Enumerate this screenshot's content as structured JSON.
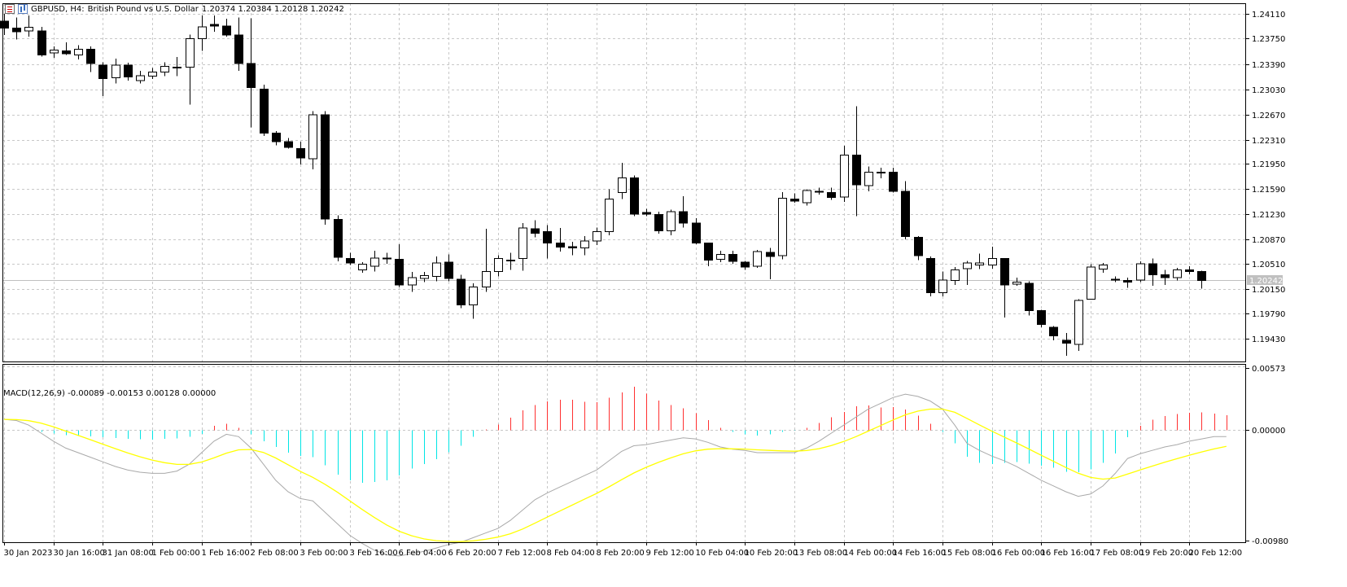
{
  "header": {
    "symbol": "GBPUSD, H4:",
    "description": "British Pound vs U.S. Dollar",
    "ohlc": "1.20374 1.20384 1.20128 1.20242",
    "icons": [
      "list-icon",
      "bar-chart-icon"
    ]
  },
  "macd": {
    "title": "MACD(12,26,9) -0.00089 -0.00153 0.00128 0.00000"
  },
  "price_tag": "1.20242",
  "colors": {
    "background": "#ffffff",
    "grid": "#c8c8c8",
    "candle": "#000000",
    "histogram_positive": "#ff3030",
    "histogram_negative": "#00e5e5",
    "macd_line": "#a9a9a9",
    "signal_line": "#ffff00",
    "price_line": "#c0c0c0"
  },
  "chart_data": [
    {
      "type": "candlestick",
      "symbol": "GBPUSD",
      "timeframe": "H4",
      "ylim": [
        1.191,
        1.2415
      ],
      "y_ticks": [
        "1.24110",
        "1.23750",
        "1.23390",
        "1.23030",
        "1.22670",
        "1.22310",
        "1.21950",
        "1.21590",
        "1.21230",
        "1.20870",
        "1.20510",
        "1.20150",
        "1.19790",
        "1.19430"
      ],
      "x_ticks": [
        "30 Jan 2023",
        "30 Jan 16:00",
        "31 Jan 08:00",
        "1 Feb 00:00",
        "1 Feb 16:00",
        "2 Feb 08:00",
        "3 Feb 00:00",
        "3 Feb 16:00",
        "6 Feb 04:00",
        "6 Feb 20:00",
        "7 Feb 12:00",
        "8 Feb 04:00",
        "8 Feb 20:00",
        "9 Feb 12:00",
        "10 Feb 04:00",
        "10 Feb 20:00",
        "13 Feb 08:00",
        "14 Feb 00:00",
        "14 Feb 16:00",
        "15 Feb 08:00",
        "16 Feb 00:00",
        "16 Feb 16:00",
        "17 Feb 08:00",
        "19 Feb 20:00",
        "20 Feb 12:00"
      ],
      "last_price": 1.20242,
      "candles": [
        {
          "o": 1.239,
          "h": 1.24,
          "l": 1.237,
          "c": 1.238
        },
        {
          "o": 1.238,
          "h": 1.2395,
          "l": 1.2364,
          "c": 1.2375
        },
        {
          "o": 1.2376,
          "h": 1.2398,
          "l": 1.2368,
          "c": 1.2381
        },
        {
          "o": 1.2376,
          "h": 1.2382,
          "l": 1.234,
          "c": 1.2342
        },
        {
          "o": 1.2345,
          "h": 1.2354,
          "l": 1.2338,
          "c": 1.2349
        },
        {
          "o": 1.2348,
          "h": 1.236,
          "l": 1.2342,
          "c": 1.2344
        },
        {
          "o": 1.2342,
          "h": 1.2356,
          "l": 1.2336,
          "c": 1.235
        },
        {
          "o": 1.235,
          "h": 1.2354,
          "l": 1.2318,
          "c": 1.233
        },
        {
          "o": 1.2328,
          "h": 1.2332,
          "l": 1.2284,
          "c": 1.2309
        },
        {
          "o": 1.231,
          "h": 1.2337,
          "l": 1.2302,
          "c": 1.2328
        },
        {
          "o": 1.2328,
          "h": 1.2331,
          "l": 1.2306,
          "c": 1.2311
        },
        {
          "o": 1.2306,
          "h": 1.232,
          "l": 1.2302,
          "c": 1.2313
        },
        {
          "o": 1.2312,
          "h": 1.2324,
          "l": 1.2308,
          "c": 1.2318
        },
        {
          "o": 1.2318,
          "h": 1.2332,
          "l": 1.2312,
          "c": 1.2326
        },
        {
          "o": 1.2324,
          "h": 1.2339,
          "l": 1.2312,
          "c": 1.2325
        },
        {
          "o": 1.2325,
          "h": 1.2371,
          "l": 1.2272,
          "c": 1.2365
        },
        {
          "o": 1.2365,
          "h": 1.2398,
          "l": 1.2348,
          "c": 1.2382
        },
        {
          "o": 1.2385,
          "h": 1.2398,
          "l": 1.2375,
          "c": 1.2383
        },
        {
          "o": 1.2383,
          "h": 1.2393,
          "l": 1.2368,
          "c": 1.237
        },
        {
          "o": 1.237,
          "h": 1.2395,
          "l": 1.232,
          "c": 1.233
        },
        {
          "o": 1.233,
          "h": 1.2394,
          "l": 1.224,
          "c": 1.2296
        },
        {
          "o": 1.2294,
          "h": 1.23,
          "l": 1.2228,
          "c": 1.2232
        },
        {
          "o": 1.2232,
          "h": 1.2235,
          "l": 1.2215,
          "c": 1.222
        },
        {
          "o": 1.222,
          "h": 1.2225,
          "l": 1.221,
          "c": 1.2212
        },
        {
          "o": 1.221,
          "h": 1.222,
          "l": 1.2188,
          "c": 1.2197
        },
        {
          "o": 1.2196,
          "h": 1.2263,
          "l": 1.2181,
          "c": 1.2258
        },
        {
          "o": 1.2258,
          "h": 1.2263,
          "l": 1.2103,
          "c": 1.2111
        },
        {
          "o": 1.211,
          "h": 1.2116,
          "l": 1.2051,
          "c": 1.2057
        },
        {
          "o": 1.2055,
          "h": 1.2063,
          "l": 1.2046,
          "c": 1.2049
        },
        {
          "o": 1.2039,
          "h": 1.205,
          "l": 1.2035,
          "c": 1.2047
        },
        {
          "o": 1.2044,
          "h": 1.2066,
          "l": 1.2037,
          "c": 1.2056
        },
        {
          "o": 1.2055,
          "h": 1.2063,
          "l": 1.2048,
          "c": 1.2056
        },
        {
          "o": 1.2054,
          "h": 1.2075,
          "l": 1.2015,
          "c": 1.2018
        },
        {
          "o": 1.2018,
          "h": 1.2036,
          "l": 1.2008,
          "c": 1.2028
        },
        {
          "o": 1.2027,
          "h": 1.2036,
          "l": 1.2022,
          "c": 1.2031
        },
        {
          "o": 1.203,
          "h": 1.2058,
          "l": 1.2023,
          "c": 1.2049
        },
        {
          "o": 1.205,
          "h": 1.2061,
          "l": 1.2023,
          "c": 1.2027
        },
        {
          "o": 1.2026,
          "h": 1.2032,
          "l": 1.1985,
          "c": 1.199
        },
        {
          "o": 1.199,
          "h": 1.202,
          "l": 1.197,
          "c": 1.2015
        },
        {
          "o": 1.2015,
          "h": 1.2097,
          "l": 1.2008,
          "c": 1.2037
        },
        {
          "o": 1.2037,
          "h": 1.206,
          "l": 1.203,
          "c": 1.2055
        },
        {
          "o": 1.2053,
          "h": 1.2063,
          "l": 1.2039,
          "c": 1.2053
        },
        {
          "o": 1.2055,
          "h": 1.2105,
          "l": 1.2038,
          "c": 1.2098
        },
        {
          "o": 1.2097,
          "h": 1.2109,
          "l": 1.2085,
          "c": 1.2091
        },
        {
          "o": 1.2093,
          "h": 1.2102,
          "l": 1.2055,
          "c": 1.2077
        },
        {
          "o": 1.2077,
          "h": 1.2098,
          "l": 1.2065,
          "c": 1.2071
        },
        {
          "o": 1.2072,
          "h": 1.2079,
          "l": 1.206,
          "c": 1.207
        },
        {
          "o": 1.207,
          "h": 1.2087,
          "l": 1.206,
          "c": 1.208
        },
        {
          "o": 1.208,
          "h": 1.2099,
          "l": 1.2074,
          "c": 1.2093
        },
        {
          "o": 1.2093,
          "h": 1.2153,
          "l": 1.2088,
          "c": 1.2139
        },
        {
          "o": 1.2148,
          "h": 1.219,
          "l": 1.2139,
          "c": 1.2169
        },
        {
          "o": 1.2169,
          "h": 1.2172,
          "l": 1.2115,
          "c": 1.2118
        },
        {
          "o": 1.212,
          "h": 1.2125,
          "l": 1.2115,
          "c": 1.2118
        },
        {
          "o": 1.2117,
          "h": 1.2121,
          "l": 1.209,
          "c": 1.2094
        },
        {
          "o": 1.2094,
          "h": 1.2124,
          "l": 1.2088,
          "c": 1.2121
        },
        {
          "o": 1.2121,
          "h": 1.2143,
          "l": 1.2099,
          "c": 1.2105
        },
        {
          "o": 1.2105,
          "h": 1.2112,
          "l": 1.2075,
          "c": 1.2077
        },
        {
          "o": 1.2077,
          "h": 1.2077,
          "l": 1.2044,
          "c": 1.2053
        },
        {
          "o": 1.2054,
          "h": 1.2066,
          "l": 1.205,
          "c": 1.2061
        },
        {
          "o": 1.2061,
          "h": 1.2066,
          "l": 1.2048,
          "c": 1.2051
        },
        {
          "o": 1.205,
          "h": 1.2052,
          "l": 1.2039,
          "c": 1.2043
        },
        {
          "o": 1.2044,
          "h": 1.2067,
          "l": 1.2042,
          "c": 1.2065
        },
        {
          "o": 1.2064,
          "h": 1.207,
          "l": 1.2026,
          "c": 1.2058
        },
        {
          "o": 1.2059,
          "h": 1.2149,
          "l": 1.2054,
          "c": 1.214
        },
        {
          "o": 1.2139,
          "h": 1.2147,
          "l": 1.2134,
          "c": 1.2136
        },
        {
          "o": 1.2134,
          "h": 1.2153,
          "l": 1.213,
          "c": 1.2151
        },
        {
          "o": 1.215,
          "h": 1.2155,
          "l": 1.2145,
          "c": 1.2149
        },
        {
          "o": 1.2148,
          "h": 1.2155,
          "l": 1.2138,
          "c": 1.2141
        },
        {
          "o": 1.2142,
          "h": 1.2214,
          "l": 1.2135,
          "c": 1.2201
        },
        {
          "o": 1.2201,
          "h": 1.227,
          "l": 1.2115,
          "c": 1.2159
        },
        {
          "o": 1.2158,
          "h": 1.2185,
          "l": 1.215,
          "c": 1.2177
        },
        {
          "o": 1.2177,
          "h": 1.2183,
          "l": 1.2168,
          "c": 1.2176
        },
        {
          "o": 1.2177,
          "h": 1.2183,
          "l": 1.2148,
          "c": 1.215
        },
        {
          "o": 1.215,
          "h": 1.2164,
          "l": 1.2082,
          "c": 1.2086
        },
        {
          "o": 1.2085,
          "h": 1.2087,
          "l": 1.2053,
          "c": 1.2059
        },
        {
          "o": 1.2055,
          "h": 1.2058,
          "l": 1.2002,
          "c": 1.2007
        },
        {
          "o": 1.2007,
          "h": 1.2037,
          "l": 1.2002,
          "c": 1.2025
        },
        {
          "o": 1.2024,
          "h": 1.2043,
          "l": 1.2018,
          "c": 1.2039
        },
        {
          "o": 1.2041,
          "h": 1.2052,
          "l": 1.2018,
          "c": 1.2049
        },
        {
          "o": 1.2046,
          "h": 1.2062,
          "l": 1.204,
          "c": 1.2049
        },
        {
          "o": 1.2046,
          "h": 1.2072,
          "l": 1.2041,
          "c": 1.2055
        },
        {
          "o": 1.2055,
          "h": 1.2056,
          "l": 1.1972,
          "c": 1.2018
        },
        {
          "o": 1.2019,
          "h": 1.2028,
          "l": 1.2017,
          "c": 1.2022
        },
        {
          "o": 1.202,
          "h": 1.2023,
          "l": 1.1975,
          "c": 1.1982
        },
        {
          "o": 1.1982,
          "h": 1.1983,
          "l": 1.1958,
          "c": 1.1962
        },
        {
          "o": 1.1958,
          "h": 1.196,
          "l": 1.194,
          "c": 1.1946
        },
        {
          "o": 1.194,
          "h": 1.195,
          "l": 1.1918,
          "c": 1.1936
        },
        {
          "o": 1.1934,
          "h": 1.1998,
          "l": 1.1925,
          "c": 1.1996
        },
        {
          "o": 1.1998,
          "h": 1.2047,
          "l": 1.1997,
          "c": 1.2043
        },
        {
          "o": 1.204,
          "h": 1.2049,
          "l": 1.2035,
          "c": 1.2046
        },
        {
          "o": 1.2026,
          "h": 1.203,
          "l": 1.2022,
          "c": 1.2026
        },
        {
          "o": 1.2024,
          "h": 1.2028,
          "l": 1.2014,
          "c": 1.2022
        },
        {
          "o": 1.2025,
          "h": 1.2051,
          "l": 1.2022,
          "c": 1.2048
        },
        {
          "o": 1.2048,
          "h": 1.2055,
          "l": 1.2017,
          "c": 1.2032
        },
        {
          "o": 1.2032,
          "h": 1.2039,
          "l": 1.2018,
          "c": 1.2028
        },
        {
          "o": 1.2028,
          "h": 1.2042,
          "l": 1.2024,
          "c": 1.2039
        },
        {
          "o": 1.2039,
          "h": 1.2044,
          "l": 1.2033,
          "c": 1.2037
        },
        {
          "o": 1.2037,
          "h": 1.2038,
          "l": 1.2013,
          "c": 1.2024
        }
      ]
    },
    {
      "type": "macd",
      "title": "MACD(12,26,9) -0.00089 -0.00153 0.00128 0.00000",
      "ylim": [
        -0.0098,
        0.00573
      ],
      "y_ticks": [
        "0.00573",
        "0.00000",
        "-0.00980"
      ],
      "histogram": [
        -6e-05,
        -4e-05,
        -6e-05,
        -0.0002,
        -0.00032,
        -0.00046,
        -0.00054,
        -0.00058,
        -0.00066,
        -0.00074,
        -0.0008,
        -0.00082,
        -0.00086,
        -0.0008,
        -0.00076,
        -0.0006,
        -0.00036,
        0.00034,
        0.00052,
        0.00016,
        -0.0004,
        -0.001,
        -0.0015,
        -0.002,
        -0.00228,
        -0.00238,
        -0.0031,
        -0.0039,
        -0.0044,
        -0.00464,
        -0.00454,
        -0.0044,
        -0.004,
        -0.0034,
        -0.003,
        -0.00256,
        -0.00196,
        -0.0014,
        -0.0006,
        2e-05,
        0.00044,
        0.00104,
        0.00168,
        0.00216,
        0.00248,
        0.00262,
        0.00262,
        0.00244,
        0.0024,
        0.0028,
        0.00326,
        0.00376,
        0.00314,
        0.00254,
        0.00214,
        0.00186,
        0.00144,
        0.00082,
        0.00018,
        -0.0002,
        -0.0004,
        -0.0005,
        -0.0004,
        -0.0002,
        -0.0001,
        0.00016,
        0.0006,
        0.0011,
        0.00156,
        0.00206,
        0.0021,
        0.00192,
        0.00198,
        0.00176,
        0.00122,
        0.00052,
        -0.0002,
        -0.00118,
        -0.00234,
        -0.0029,
        -0.003,
        -0.0029,
        -0.00282,
        -0.00294,
        -0.00312,
        -0.00332,
        -0.00368,
        -0.0037,
        -0.00346,
        -0.0029,
        -0.00206,
        -0.00064,
        0.00034,
        0.00086,
        0.0012,
        0.00136,
        0.00146,
        0.0015,
        0.0014,
        0.00128
      ],
      "macd": [
        0.0009,
        0.0008,
        0.0004,
        -0.0003,
        -0.001,
        -0.0016,
        -0.002,
        -0.0024,
        -0.0028,
        -0.0032,
        -0.0035,
        -0.0037,
        -0.0038,
        -0.0038,
        -0.0036,
        -0.003,
        -0.002,
        -0.001,
        -0.0004,
        -0.0006,
        -0.0016,
        -0.003,
        -0.0044,
        -0.0054,
        -0.006,
        -0.0062,
        -0.0072,
        -0.0082,
        -0.0092,
        -0.0099,
        -0.0105,
        -0.0109,
        -0.011,
        -0.0108,
        -0.0106,
        -0.0103,
        -0.01,
        -0.0098,
        -0.0094,
        -0.009,
        -0.0086,
        -0.0079,
        -0.007,
        -0.0061,
        -0.0055,
        -0.005,
        -0.0045,
        -0.004,
        -0.0035,
        -0.0027,
        -0.0019,
        -0.0014,
        -0.0013,
        -0.0011,
        -0.0009,
        -0.0007,
        -0.0008,
        -0.0011,
        -0.0015,
        -0.0017,
        -0.0018,
        -0.002,
        -0.002,
        -0.002,
        -0.002,
        -0.0016,
        -0.001,
        -0.0003,
        0.0004,
        0.0011,
        0.0018,
        0.0023,
        0.0028,
        0.0031,
        0.0029,
        0.0025,
        0.0018,
        0.0004,
        -0.0012,
        -0.0018,
        -0.0023,
        -0.0027,
        -0.0032,
        -0.0038,
        -0.0044,
        -0.0049,
        -0.0054,
        -0.0058,
        -0.0056,
        -0.0049,
        -0.0038,
        -0.0025,
        -0.0021,
        -0.0018,
        -0.0015,
        -0.0013,
        -0.001,
        -0.0008,
        -0.0006,
        -0.0006
      ]
    }
  ]
}
